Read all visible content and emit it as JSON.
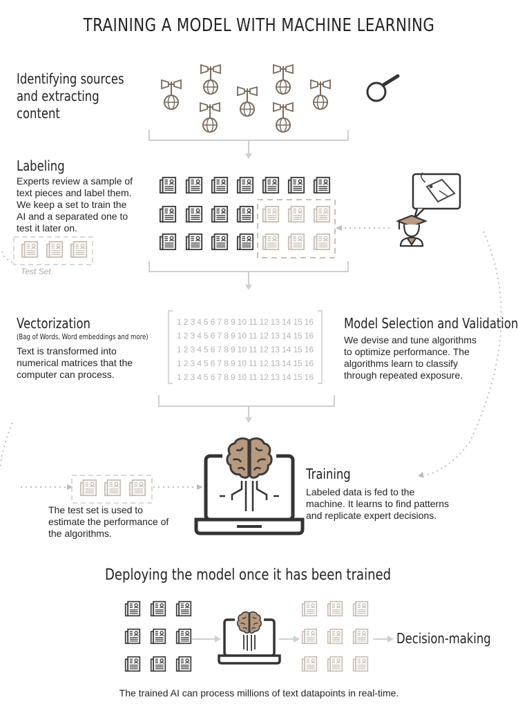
{
  "title": "TRAINING A MODEL WITH MACHINE LEARNING",
  "sections": {
    "sources": {
      "heading": "Identifying sources\nand extracting\ncontent"
    },
    "labeling": {
      "heading": "Labeling",
      "text": "Experts review a sample of\ntext pieces and label them.\nWe keep a set to train the\nAI and a separated one to\ntest it later on.",
      "test_set_label": "Test Set"
    },
    "vectorization": {
      "heading": "Vectorization",
      "subheading": "(Bag of Words, Word embeddings and more)",
      "text": "Text is transformed into\nnumerical matrices that the\ncomputer can process.",
      "matrix_row": "1 2 3 4 5 6 7 8 9 10 11 12 13 14 15 16"
    },
    "model_selection": {
      "heading": "Model Selection and Validation",
      "text": "We devise and tune algorithms\nto optimize performance. The\nalgorithms learn to classify\nthrough repeated exposure."
    },
    "training": {
      "heading": "Training",
      "text": "Labeled data is fed to the\nmachine. It learns to find patterns\nand replicate expert decisions."
    },
    "test_eval": {
      "text": "The test set is used to\nestimate the performance of\nthe algorithms."
    },
    "deploy": {
      "heading": "Deploying the model once it has been trained",
      "decision": "Decision-making",
      "caption": "The trained AI can process millions of text datapoints in real-time."
    }
  },
  "colors": {
    "text": "#222222",
    "dark_icon": "#3a3a3a",
    "muted_icon": "#c8bfb4",
    "brain": "#b89a7f",
    "connector": "#cfcfcf",
    "dotted": "#bdbdbd"
  },
  "icons": [
    "loudspeaker-globe-icon",
    "magnifier-icon",
    "news-document-icon",
    "expert-tag-icon",
    "laptop-brain-icon"
  ]
}
